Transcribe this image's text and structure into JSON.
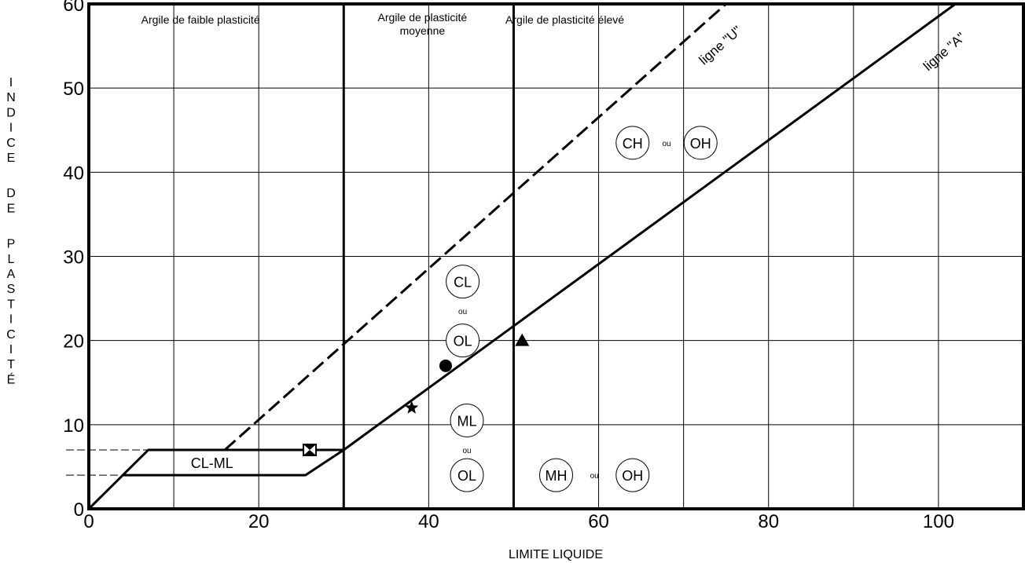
{
  "chart_data": {
    "type": "line",
    "xlabel": "LIMITE LIQUIDE",
    "ylabel": "INDICE DE PLASTICITÉ",
    "xlim": [
      0,
      110
    ],
    "ylim": [
      0,
      60
    ],
    "x_ticks": [
      0,
      20,
      40,
      60,
      80,
      100
    ],
    "y_ticks": [
      0,
      10,
      20,
      30,
      40,
      50,
      60
    ],
    "grid": true,
    "zones": [
      {
        "label": "Argile de faible plasticité"
      },
      {
        "label": "Argile de plasticité moyenne"
      },
      {
        "label": "Argile de plasticité élevé"
      }
    ],
    "series": [
      {
        "name": "ligne \"U\"",
        "style": "dashed",
        "x": [
          16,
          75
        ],
        "y": [
          7,
          60
        ]
      },
      {
        "name": "ligne \"A\"",
        "style": "solid",
        "x": [
          30,
          102
        ],
        "y": [
          7,
          60
        ]
      }
    ],
    "boundaries": [
      {
        "x": [
          0,
          7,
          30
        ],
        "y": [
          0,
          7,
          7
        ]
      },
      {
        "x": [
          4,
          25.5,
          30
        ],
        "y": [
          4,
          4,
          7
        ]
      },
      {
        "x": [
          30,
          30
        ],
        "y": [
          0,
          60
        ]
      },
      {
        "x": [
          50,
          50
        ],
        "y": [
          0,
          60
        ]
      }
    ],
    "reference_lines": [
      {
        "x": [
          0,
          7
        ],
        "y": [
          7,
          7
        ],
        "style": "dashed"
      },
      {
        "x": [
          0,
          4
        ],
        "y": [
          4,
          4
        ],
        "style": "dashed"
      }
    ],
    "classes": [
      {
        "label": "CL-ML",
        "x": 14.5,
        "y": 5.5,
        "circled": false
      },
      {
        "label": "CL",
        "x": 44,
        "y": 27,
        "circled": true
      },
      {
        "label": "OL",
        "x": 44,
        "y": 20,
        "circled": true
      },
      {
        "label": "ML",
        "x": 44.5,
        "y": 10.5,
        "circled": true
      },
      {
        "label": "OL",
        "x": 44.5,
        "y": 4,
        "circled": true
      },
      {
        "label": "CH",
        "x": 64,
        "y": 43.5,
        "circled": true
      },
      {
        "label": "OH",
        "x": 72,
        "y": 43.5,
        "circled": true
      },
      {
        "label": "MH",
        "x": 55,
        "y": 4,
        "circled": true
      },
      {
        "label": "OH",
        "x": 64,
        "y": 4,
        "circled": true
      }
    ],
    "ou_labels": [
      {
        "text": "ou",
        "x": 44,
        "y": 23.5
      },
      {
        "text": "ou",
        "x": 44.5,
        "y": 7
      },
      {
        "text": "ou",
        "x": 68,
        "y": 43.5
      },
      {
        "text": "ou",
        "x": 59.5,
        "y": 4
      }
    ],
    "markers": [
      {
        "shape": "hourglass",
        "x": 26,
        "y": 7
      },
      {
        "shape": "star",
        "x": 38,
        "y": 12
      },
      {
        "shape": "circle",
        "x": 42,
        "y": 17
      },
      {
        "shape": "triangle",
        "x": 51,
        "y": 20
      }
    ]
  }
}
